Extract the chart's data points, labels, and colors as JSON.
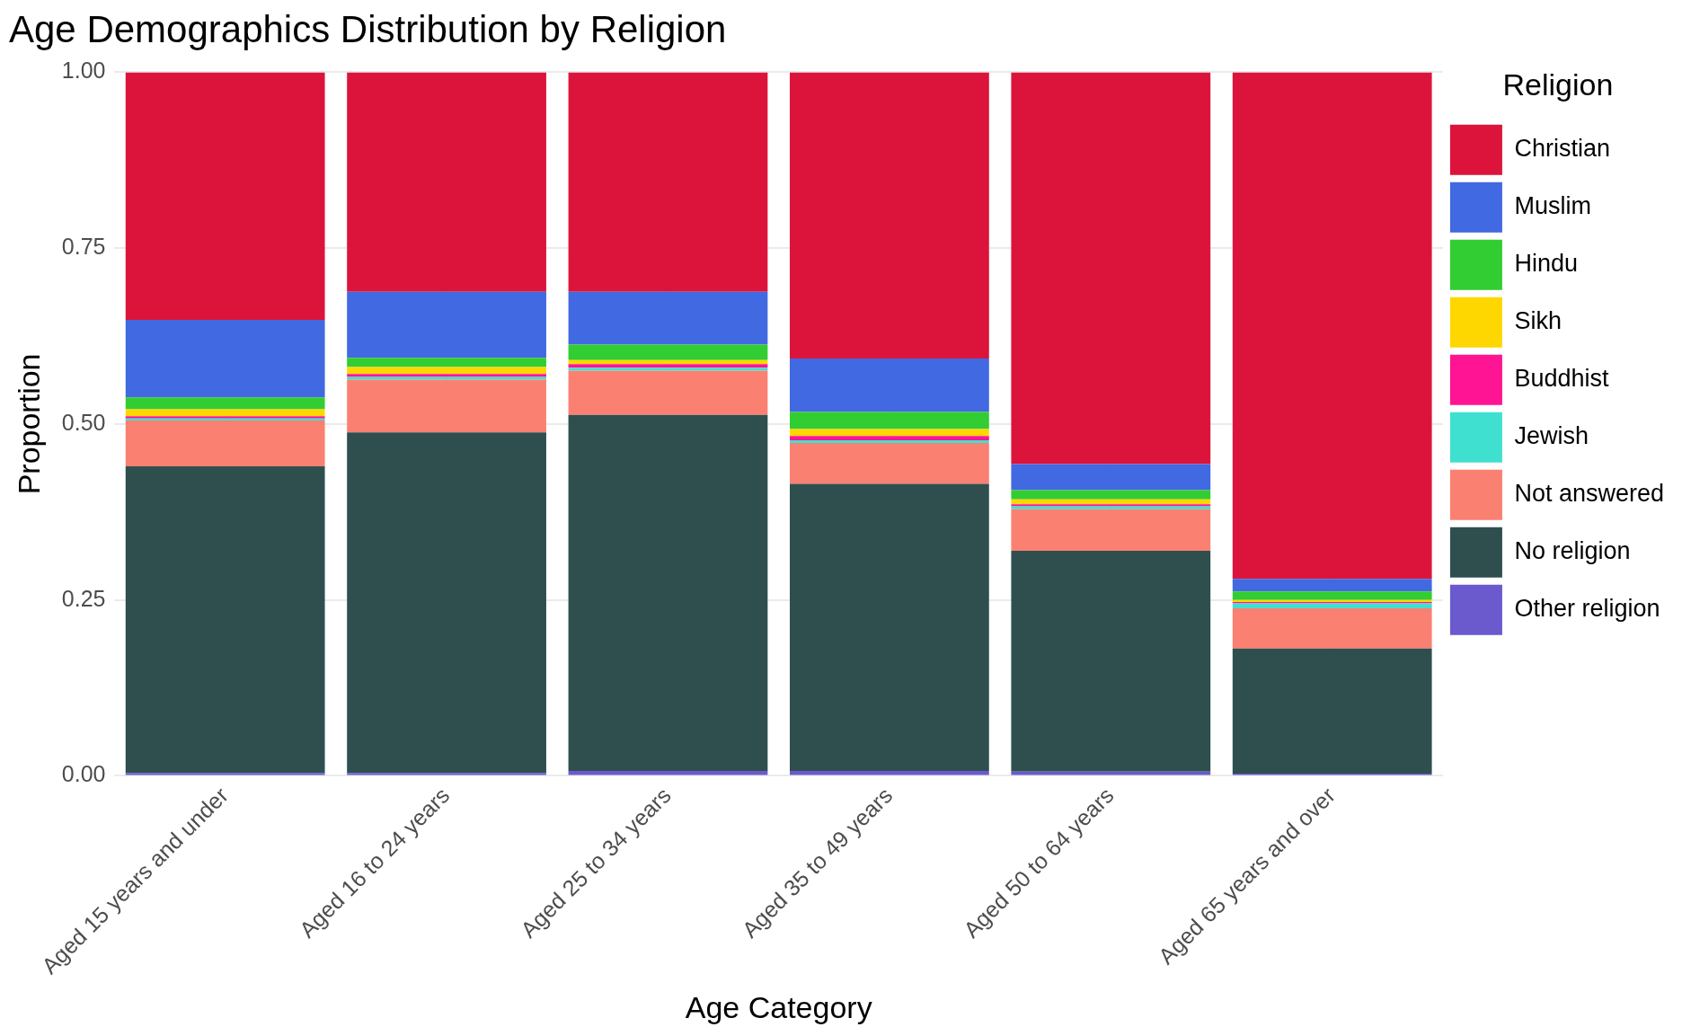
{
  "chart_data": {
    "type": "bar",
    "title": "Age Demographics Distribution by Religion",
    "xlabel": "Age Category",
    "ylabel": "Proportion",
    "legend_title": "Religion",
    "categories": [
      "Aged 15 years and under",
      "Aged 16 to 24 years",
      "Aged 25 to 34 years",
      "Aged 35 to 49 years",
      "Aged 50 to 64 years",
      "Aged 65 years and over"
    ],
    "stacked": true,
    "ylim": [
      0,
      1
    ],
    "yticks": [
      {
        "value": 0,
        "label": "0.00"
      },
      {
        "value": 0.25,
        "label": "0.25"
      },
      {
        "value": 0.5,
        "label": "0.50"
      },
      {
        "value": 0.75,
        "label": "0.75"
      },
      {
        "value": 1,
        "label": "1.00"
      }
    ],
    "grid": true,
    "legend": "right",
    "series": [
      {
        "name": "Other religion",
        "color": "#6a5acd",
        "values": [
          0.004,
          0.004,
          0.007,
          0.007,
          0.006,
          0.003
        ]
      },
      {
        "name": "No religion",
        "color": "#2f4f4f",
        "values": [
          0.436,
          0.484,
          0.506,
          0.408,
          0.314,
          0.178
        ]
      },
      {
        "name": "Not answered",
        "color": "#fa8072",
        "values": [
          0.065,
          0.075,
          0.063,
          0.058,
          0.059,
          0.057
        ]
      },
      {
        "name": "Jewish",
        "color": "#40e0d0",
        "values": [
          0.003,
          0.004,
          0.004,
          0.004,
          0.004,
          0.007
        ]
      },
      {
        "name": "Buddhist",
        "color": "#ff1493",
        "values": [
          0.003,
          0.004,
          0.005,
          0.006,
          0.003,
          0.002
        ]
      },
      {
        "name": "Sikh",
        "color": "#ffd700",
        "values": [
          0.01,
          0.01,
          0.006,
          0.01,
          0.007,
          0.003
        ]
      },
      {
        "name": "Hindu",
        "color": "#32cd32",
        "values": [
          0.017,
          0.013,
          0.022,
          0.024,
          0.013,
          0.012
        ]
      },
      {
        "name": "Muslim",
        "color": "#4169e1",
        "values": [
          0.11,
          0.094,
          0.075,
          0.076,
          0.037,
          0.018
        ]
      },
      {
        "name": "Christian",
        "color": "#dc143c",
        "values": [
          0.352,
          0.312,
          0.312,
          0.407,
          0.557,
          0.72
        ]
      }
    ]
  }
}
